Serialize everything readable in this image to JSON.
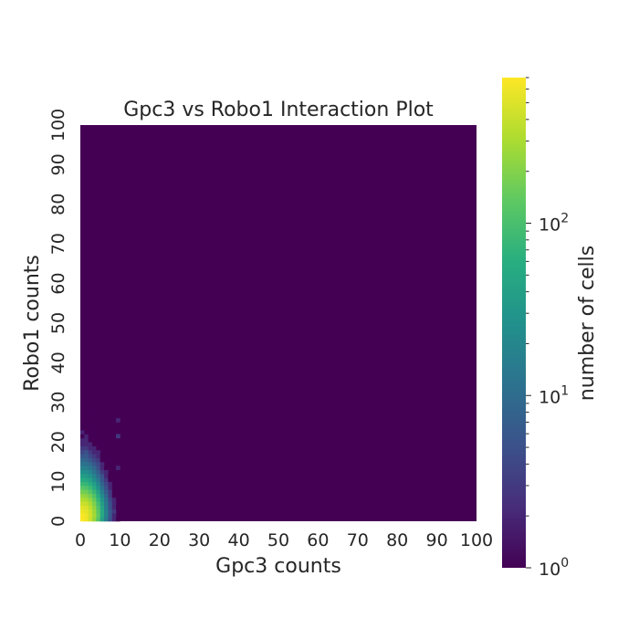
{
  "chart_data": {
    "type": "heatmap",
    "title": "Gpc3 vs Robo1 Interaction Plot",
    "xlabel": "Gpc3 counts",
    "ylabel": "Robo1 counts",
    "xlim": [
      0,
      100
    ],
    "ylim": [
      0,
      100
    ],
    "bin_size": 1,
    "x_ticks": [
      "0",
      "10",
      "20",
      "30",
      "40",
      "50",
      "60",
      "70",
      "80",
      "90",
      "100"
    ],
    "y_ticks": [
      "0",
      "10",
      "20",
      "30",
      "40",
      "50",
      "60",
      "70",
      "80",
      "90",
      "100"
    ],
    "colorbar": {
      "label": "number of cells",
      "scale": "log",
      "colormap": "viridis",
      "range": [
        1,
        700
      ],
      "major_ticks": [
        {
          "value": 1,
          "base": "10",
          "exp": "0"
        },
        {
          "value": 10,
          "base": "10",
          "exp": "1"
        },
        {
          "value": 100,
          "base": "10",
          "exp": "2"
        }
      ]
    },
    "background_color": "#440154",
    "grid": false,
    "cells": [
      {
        "x": 0,
        "y": 0,
        "count": 700
      },
      {
        "x": 1,
        "y": 0,
        "count": 620
      },
      {
        "x": 2,
        "y": 0,
        "count": 420
      },
      {
        "x": 3,
        "y": 0,
        "count": 250
      },
      {
        "x": 4,
        "y": 0,
        "count": 120
      },
      {
        "x": 5,
        "y": 0,
        "count": 40
      },
      {
        "x": 6,
        "y": 0,
        "count": 15
      },
      {
        "x": 7,
        "y": 0,
        "count": 5
      },
      {
        "x": 8,
        "y": 0,
        "count": 2
      },
      {
        "x": 9,
        "y": 0,
        "count": 1
      },
      {
        "x": 0,
        "y": 1,
        "count": 680
      },
      {
        "x": 1,
        "y": 1,
        "count": 600
      },
      {
        "x": 2,
        "y": 1,
        "count": 450
      },
      {
        "x": 3,
        "y": 1,
        "count": 280
      },
      {
        "x": 4,
        "y": 1,
        "count": 140
      },
      {
        "x": 5,
        "y": 1,
        "count": 50
      },
      {
        "x": 6,
        "y": 1,
        "count": 18
      },
      {
        "x": 7,
        "y": 1,
        "count": 6
      },
      {
        "x": 8,
        "y": 1,
        "count": 2
      },
      {
        "x": 0,
        "y": 2,
        "count": 600
      },
      {
        "x": 1,
        "y": 2,
        "count": 560
      },
      {
        "x": 2,
        "y": 2,
        "count": 420
      },
      {
        "x": 3,
        "y": 2,
        "count": 260
      },
      {
        "x": 4,
        "y": 2,
        "count": 130
      },
      {
        "x": 5,
        "y": 2,
        "count": 50
      },
      {
        "x": 6,
        "y": 2,
        "count": 18
      },
      {
        "x": 7,
        "y": 2,
        "count": 6
      },
      {
        "x": 8,
        "y": 2,
        "count": 3
      },
      {
        "x": 10,
        "y": 2,
        "count": 1
      },
      {
        "x": 0,
        "y": 3,
        "count": 520
      },
      {
        "x": 1,
        "y": 3,
        "count": 480
      },
      {
        "x": 2,
        "y": 3,
        "count": 360
      },
      {
        "x": 3,
        "y": 3,
        "count": 230
      },
      {
        "x": 4,
        "y": 3,
        "count": 110
      },
      {
        "x": 5,
        "y": 3,
        "count": 45
      },
      {
        "x": 6,
        "y": 3,
        "count": 16
      },
      {
        "x": 7,
        "y": 3,
        "count": 5
      },
      {
        "x": 8,
        "y": 3,
        "count": 2
      },
      {
        "x": 9,
        "y": 3,
        "count": 1
      },
      {
        "x": 0,
        "y": 4,
        "count": 420
      },
      {
        "x": 1,
        "y": 4,
        "count": 400
      },
      {
        "x": 2,
        "y": 4,
        "count": 300
      },
      {
        "x": 3,
        "y": 4,
        "count": 190
      },
      {
        "x": 4,
        "y": 4,
        "count": 95
      },
      {
        "x": 5,
        "y": 4,
        "count": 38
      },
      {
        "x": 6,
        "y": 4,
        "count": 14
      },
      {
        "x": 7,
        "y": 4,
        "count": 5
      },
      {
        "x": 8,
        "y": 4,
        "count": 2
      },
      {
        "x": 0,
        "y": 5,
        "count": 320
      },
      {
        "x": 1,
        "y": 5,
        "count": 300
      },
      {
        "x": 2,
        "y": 5,
        "count": 230
      },
      {
        "x": 3,
        "y": 5,
        "count": 150
      },
      {
        "x": 4,
        "y": 5,
        "count": 75
      },
      {
        "x": 5,
        "y": 5,
        "count": 30
      },
      {
        "x": 6,
        "y": 5,
        "count": 12
      },
      {
        "x": 7,
        "y": 5,
        "count": 4
      },
      {
        "x": 8,
        "y": 5,
        "count": 2
      },
      {
        "x": 9,
        "y": 5,
        "count": 1
      },
      {
        "x": 0,
        "y": 6,
        "count": 240
      },
      {
        "x": 1,
        "y": 6,
        "count": 220
      },
      {
        "x": 2,
        "y": 6,
        "count": 170
      },
      {
        "x": 3,
        "y": 6,
        "count": 110
      },
      {
        "x": 4,
        "y": 6,
        "count": 55
      },
      {
        "x": 5,
        "y": 6,
        "count": 22
      },
      {
        "x": 6,
        "y": 6,
        "count": 9
      },
      {
        "x": 7,
        "y": 6,
        "count": 3
      },
      {
        "x": 8,
        "y": 6,
        "count": 1
      },
      {
        "x": 0,
        "y": 7,
        "count": 170
      },
      {
        "x": 1,
        "y": 7,
        "count": 160
      },
      {
        "x": 2,
        "y": 7,
        "count": 120
      },
      {
        "x": 3,
        "y": 7,
        "count": 80
      },
      {
        "x": 4,
        "y": 7,
        "count": 40
      },
      {
        "x": 5,
        "y": 7,
        "count": 16
      },
      {
        "x": 6,
        "y": 7,
        "count": 7
      },
      {
        "x": 7,
        "y": 7,
        "count": 3
      },
      {
        "x": 8,
        "y": 7,
        "count": 1
      },
      {
        "x": 0,
        "y": 8,
        "count": 120
      },
      {
        "x": 1,
        "y": 8,
        "count": 110
      },
      {
        "x": 2,
        "y": 8,
        "count": 85
      },
      {
        "x": 3,
        "y": 8,
        "count": 55
      },
      {
        "x": 4,
        "y": 8,
        "count": 28
      },
      {
        "x": 5,
        "y": 8,
        "count": 11
      },
      {
        "x": 6,
        "y": 8,
        "count": 5
      },
      {
        "x": 7,
        "y": 8,
        "count": 2
      },
      {
        "x": 8,
        "y": 8,
        "count": 1
      },
      {
        "x": 0,
        "y": 9,
        "count": 80
      },
      {
        "x": 1,
        "y": 9,
        "count": 75
      },
      {
        "x": 2,
        "y": 9,
        "count": 60
      },
      {
        "x": 3,
        "y": 9,
        "count": 38
      },
      {
        "x": 4,
        "y": 9,
        "count": 20
      },
      {
        "x": 5,
        "y": 9,
        "count": 8
      },
      {
        "x": 6,
        "y": 9,
        "count": 4
      },
      {
        "x": 7,
        "y": 9,
        "count": 2
      },
      {
        "x": 8,
        "y": 9,
        "count": 1
      },
      {
        "x": 0,
        "y": 10,
        "count": 55
      },
      {
        "x": 1,
        "y": 10,
        "count": 50
      },
      {
        "x": 2,
        "y": 10,
        "count": 40
      },
      {
        "x": 3,
        "y": 10,
        "count": 26
      },
      {
        "x": 4,
        "y": 10,
        "count": 14
      },
      {
        "x": 5,
        "y": 10,
        "count": 6
      },
      {
        "x": 6,
        "y": 10,
        "count": 3
      },
      {
        "x": 7,
        "y": 10,
        "count": 1
      },
      {
        "x": 9,
        "y": 10,
        "count": 1
      },
      {
        "x": 0,
        "y": 11,
        "count": 38
      },
      {
        "x": 1,
        "y": 11,
        "count": 34
      },
      {
        "x": 2,
        "y": 11,
        "count": 27
      },
      {
        "x": 3,
        "y": 11,
        "count": 18
      },
      {
        "x": 4,
        "y": 11,
        "count": 10
      },
      {
        "x": 5,
        "y": 11,
        "count": 5
      },
      {
        "x": 6,
        "y": 11,
        "count": 2
      },
      {
        "x": 7,
        "y": 11,
        "count": 1
      },
      {
        "x": 0,
        "y": 12,
        "count": 26
      },
      {
        "x": 1,
        "y": 12,
        "count": 24
      },
      {
        "x": 2,
        "y": 12,
        "count": 19
      },
      {
        "x": 3,
        "y": 12,
        "count": 12
      },
      {
        "x": 4,
        "y": 12,
        "count": 7
      },
      {
        "x": 5,
        "y": 12,
        "count": 3
      },
      {
        "x": 6,
        "y": 12,
        "count": 2
      },
      {
        "x": 8,
        "y": 12,
        "count": 1
      },
      {
        "x": 0,
        "y": 13,
        "count": 18
      },
      {
        "x": 1,
        "y": 13,
        "count": 16
      },
      {
        "x": 2,
        "y": 13,
        "count": 13
      },
      {
        "x": 3,
        "y": 13,
        "count": 9
      },
      {
        "x": 4,
        "y": 13,
        "count": 5
      },
      {
        "x": 5,
        "y": 13,
        "count": 2
      },
      {
        "x": 6,
        "y": 13,
        "count": 1
      },
      {
        "x": 9,
        "y": 13,
        "count": 2
      },
      {
        "x": 0,
        "y": 14,
        "count": 12
      },
      {
        "x": 1,
        "y": 14,
        "count": 11
      },
      {
        "x": 2,
        "y": 14,
        "count": 9
      },
      {
        "x": 3,
        "y": 14,
        "count": 6
      },
      {
        "x": 4,
        "y": 14,
        "count": 4
      },
      {
        "x": 5,
        "y": 14,
        "count": 2
      },
      {
        "x": 7,
        "y": 14,
        "count": 1
      },
      {
        "x": 0,
        "y": 15,
        "count": 9
      },
      {
        "x": 1,
        "y": 15,
        "count": 8
      },
      {
        "x": 2,
        "y": 15,
        "count": 6
      },
      {
        "x": 3,
        "y": 15,
        "count": 4
      },
      {
        "x": 4,
        "y": 15,
        "count": 3
      },
      {
        "x": 5,
        "y": 15,
        "count": 1
      },
      {
        "x": 6,
        "y": 15,
        "count": 1
      },
      {
        "x": 8,
        "y": 15,
        "count": 1
      },
      {
        "x": 0,
        "y": 16,
        "count": 6
      },
      {
        "x": 1,
        "y": 16,
        "count": 6
      },
      {
        "x": 2,
        "y": 16,
        "count": 4
      },
      {
        "x": 3,
        "y": 16,
        "count": 3
      },
      {
        "x": 4,
        "y": 16,
        "count": 2
      },
      {
        "x": 5,
        "y": 16,
        "count": 1
      },
      {
        "x": 9,
        "y": 16,
        "count": 1
      },
      {
        "x": 0,
        "y": 17,
        "count": 4
      },
      {
        "x": 1,
        "y": 17,
        "count": 5
      },
      {
        "x": 2,
        "y": 17,
        "count": 3
      },
      {
        "x": 3,
        "y": 17,
        "count": 2
      },
      {
        "x": 4,
        "y": 17,
        "count": 2
      },
      {
        "x": 6,
        "y": 17,
        "count": 1
      },
      {
        "x": 0,
        "y": 18,
        "count": 3
      },
      {
        "x": 1,
        "y": 18,
        "count": 3
      },
      {
        "x": 2,
        "y": 18,
        "count": 2
      },
      {
        "x": 3,
        "y": 18,
        "count": 2
      },
      {
        "x": 4,
        "y": 18,
        "count": 1
      },
      {
        "x": 5,
        "y": 18,
        "count": 1
      },
      {
        "x": 10,
        "y": 18,
        "count": 1
      },
      {
        "x": 0,
        "y": 19,
        "count": 2
      },
      {
        "x": 1,
        "y": 19,
        "count": 2
      },
      {
        "x": 2,
        "y": 19,
        "count": 2
      },
      {
        "x": 3,
        "y": 19,
        "count": 1
      },
      {
        "x": 5,
        "y": 19,
        "count": 1
      },
      {
        "x": 8,
        "y": 19,
        "count": 1
      },
      {
        "x": 0,
        "y": 20,
        "count": 2
      },
      {
        "x": 1,
        "y": 20,
        "count": 2
      },
      {
        "x": 2,
        "y": 20,
        "count": 1
      },
      {
        "x": 3,
        "y": 20,
        "count": 1
      },
      {
        "x": 4,
        "y": 20,
        "count": 1
      },
      {
        "x": 6,
        "y": 20,
        "count": 1
      },
      {
        "x": 0,
        "y": 21,
        "count": 1
      },
      {
        "x": 1,
        "y": 21,
        "count": 2
      },
      {
        "x": 2,
        "y": 21,
        "count": 1
      },
      {
        "x": 3,
        "y": 21,
        "count": 1
      },
      {
        "x": 9,
        "y": 21,
        "count": 3
      },
      {
        "x": 0,
        "y": 22,
        "count": 2
      },
      {
        "x": 1,
        "y": 22,
        "count": 1
      },
      {
        "x": 2,
        "y": 22,
        "count": 1
      },
      {
        "x": 4,
        "y": 22,
        "count": 1
      },
      {
        "x": 7,
        "y": 22,
        "count": 1
      },
      {
        "x": 0,
        "y": 23,
        "count": 1
      },
      {
        "x": 1,
        "y": 23,
        "count": 1
      },
      {
        "x": 3,
        "y": 23,
        "count": 1
      },
      {
        "x": 10,
        "y": 23,
        "count": 1
      },
      {
        "x": 0,
        "y": 24,
        "count": 1
      },
      {
        "x": 2,
        "y": 24,
        "count": 1
      },
      {
        "x": 5,
        "y": 24,
        "count": 1
      },
      {
        "x": 0,
        "y": 25,
        "count": 1
      },
      {
        "x": 1,
        "y": 25,
        "count": 1
      },
      {
        "x": 9,
        "y": 25,
        "count": 2
      },
      {
        "x": 1,
        "y": 26,
        "count": 1
      },
      {
        "x": 4,
        "y": 26,
        "count": 1
      },
      {
        "x": 8,
        "y": 26,
        "count": 1
      },
      {
        "x": 0,
        "y": 27,
        "count": 1
      },
      {
        "x": 2,
        "y": 27,
        "count": 1
      },
      {
        "x": 10,
        "y": 27,
        "count": 1
      },
      {
        "x": 1,
        "y": 28,
        "count": 1
      },
      {
        "x": 3,
        "y": 28,
        "count": 1
      },
      {
        "x": 6,
        "y": 28,
        "count": 1
      },
      {
        "x": 0,
        "y": 29,
        "count": 1
      },
      {
        "x": 9,
        "y": 29,
        "count": 1
      },
      {
        "x": 11,
        "y": 29,
        "count": 1
      },
      {
        "x": 2,
        "y": 30,
        "count": 1
      },
      {
        "x": 5,
        "y": 30,
        "count": 1
      },
      {
        "x": 7,
        "y": 31,
        "count": 1
      },
      {
        "x": 10,
        "y": 31,
        "count": 1
      },
      {
        "x": 3,
        "y": 32,
        "count": 1
      },
      {
        "x": 8,
        "y": 32,
        "count": 1
      },
      {
        "x": 0,
        "y": 33,
        "count": 1
      },
      {
        "x": 5,
        "y": 33,
        "count": 1
      },
      {
        "x": 0,
        "y": 36,
        "count": 1
      },
      {
        "x": 0,
        "y": 37,
        "count": 1
      }
    ]
  }
}
